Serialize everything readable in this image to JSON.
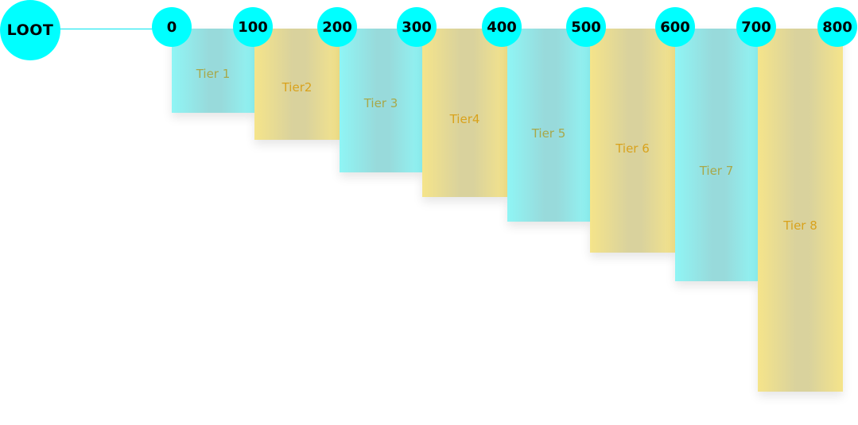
{
  "title": "LOOT",
  "ticks": [
    "0",
    "100",
    "200",
    "300",
    "400",
    "500",
    "600",
    "700",
    "800"
  ],
  "tiers": [
    {
      "label": "Tier 1",
      "from": 0,
      "to": 100,
      "color": "cyan"
    },
    {
      "label": "Tier2",
      "from": 100,
      "to": 200,
      "color": "gold"
    },
    {
      "label": "Tier 3",
      "from": 200,
      "to": 300,
      "color": "cyan"
    },
    {
      "label": "Tier4",
      "from": 300,
      "to": 400,
      "color": "gold"
    },
    {
      "label": "Tier 5",
      "from": 400,
      "to": 500,
      "color": "cyan"
    },
    {
      "label": "Tier 6",
      "from": 500,
      "to": 600,
      "color": "gold"
    },
    {
      "label": "Tier 7",
      "from": 600,
      "to": 700,
      "color": "cyan"
    },
    {
      "label": "Tier 8",
      "from": 700,
      "to": 800,
      "color": "gold"
    }
  ],
  "colors": {
    "circle": "#00ffff",
    "cyan_bar": "#98dadb",
    "gold_bar": "#d9d29d",
    "cyan_label": "#a8a84a",
    "gold_label": "#d9a21c"
  }
}
